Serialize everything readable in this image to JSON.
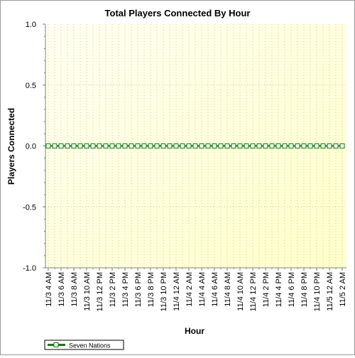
{
  "chart_data": {
    "type": "line",
    "title": "Total Players Connected By Hour",
    "xlabel": "Hour",
    "ylabel": "Players Connected",
    "ylim": [
      -1.0,
      1.0
    ],
    "yticks": [
      "1.0",
      "0.5",
      "0.0",
      "-0.5",
      "-1.0"
    ],
    "grid": true,
    "legend_position": "bottom-left",
    "colors": {
      "plot_background_light": "#fffff2",
      "plot_background_dark": "#ffffc8",
      "grid": "#c8c8aa",
      "series_line": "#0a7d0a",
      "marker_fill": "#ffffff"
    },
    "x_tick_labels": [
      "11/3 4 AM",
      "11/3 6 AM",
      "11/3 8 AM",
      "11/3 10 AM",
      "11/3 12 PM",
      "11/3 2 PM",
      "11/3 4 PM",
      "11/3 6 PM",
      "11/3 8 PM",
      "11/3 10 PM",
      "11/4 12 AM",
      "11/4 2 AM",
      "11/4 4 AM",
      "11/4 6 AM",
      "11/4 8 AM",
      "11/4 10 AM",
      "11/4 12 PM",
      "11/4 2 PM",
      "11/4 4 PM",
      "11/4 6 PM",
      "11/4 8 PM",
      "11/4 10 PM",
      "11/5 12 AM",
      "11/5 2 AM"
    ],
    "series": [
      {
        "name": "Seven Nations",
        "x": [
          "11/3 4 AM",
          "11/3 5 AM",
          "11/3 6 AM",
          "11/3 7 AM",
          "11/3 8 AM",
          "11/3 9 AM",
          "11/3 10 AM",
          "11/3 11 AM",
          "11/3 12 PM",
          "11/3 1 PM",
          "11/3 2 PM",
          "11/3 3 PM",
          "11/3 4 PM",
          "11/3 5 PM",
          "11/3 6 PM",
          "11/3 7 PM",
          "11/3 8 PM",
          "11/3 9 PM",
          "11/3 10 PM",
          "11/3 11 PM",
          "11/4 12 AM",
          "11/4 1 AM",
          "11/4 2 AM",
          "11/4 3 AM",
          "11/4 4 AM",
          "11/4 5 AM",
          "11/4 6 AM",
          "11/4 7 AM",
          "11/4 8 AM",
          "11/4 9 AM",
          "11/4 10 AM",
          "11/4 11 AM",
          "11/4 12 PM",
          "11/4 1 PM",
          "11/4 2 PM",
          "11/4 3 PM",
          "11/4 4 PM",
          "11/4 5 PM",
          "11/4 6 PM",
          "11/4 7 PM",
          "11/4 8 PM",
          "11/4 9 PM",
          "11/4 10 PM",
          "11/4 11 PM",
          "11/5 12 AM",
          "11/5 1 AM",
          "11/5 2 AM"
        ],
        "values": [
          0,
          0,
          0,
          0,
          0,
          0,
          0,
          0,
          0,
          0,
          0,
          0,
          0,
          0,
          0,
          0,
          0,
          0,
          0,
          0,
          0,
          0,
          0,
          0,
          0,
          0,
          0,
          0,
          0,
          0,
          0,
          0,
          0,
          0,
          0,
          0,
          0,
          0,
          0,
          0,
          0,
          0,
          0,
          0,
          0,
          0,
          0
        ]
      }
    ]
  }
}
